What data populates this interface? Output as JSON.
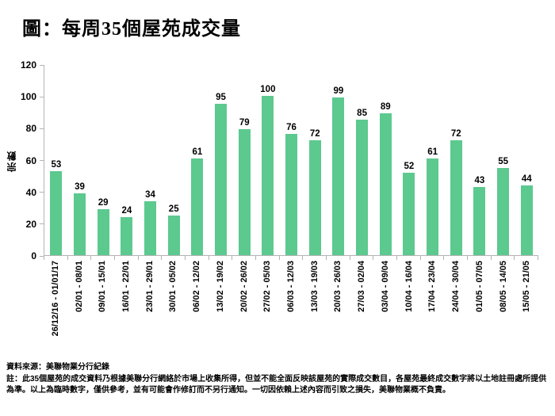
{
  "title": "圖：每周35個屋苑成交量",
  "chart_data": {
    "type": "bar",
    "title": "圖：每周35個屋苑成交量",
    "ylabel": "宗數",
    "xlabel": "",
    "ylim": [
      0,
      120
    ],
    "yticks": [
      0,
      20,
      40,
      60,
      80,
      100,
      120
    ],
    "grid": false,
    "legend_position": "none",
    "bar_color": "#5cc98f",
    "axis_color": "#b3b3b3",
    "categories": [
      "26/12/16 - 01/01/17",
      "02/01 - 08/01",
      "09/01 - 15/01",
      "16/01 - 22/01",
      "23/01 - 29/01",
      "30/01 - 05/02",
      "06/02 - 12/02",
      "13/02 - 19/02",
      "20/02 - 26/02",
      "27/02 - 05/03",
      "06/03 - 12/03",
      "13/03 - 19/03",
      "20/03 - 26/03",
      "27/03 - 02/04",
      "03/04 - 09/04",
      "10/04 - 16/04",
      "17/04 - 23/04",
      "24/04 - 30/04",
      "01/05 - 07/05",
      "08/05 - 14/05",
      "15/05 - 21/05"
    ],
    "values": [
      53,
      39,
      29,
      24,
      34,
      25,
      61,
      95,
      79,
      100,
      76,
      72,
      99,
      85,
      89,
      52,
      61,
      72,
      43,
      55,
      44
    ]
  },
  "footer": {
    "source": "資料來源：美聯物業分行紀錄",
    "note": "註：此35個屋苑的成交資料乃根據美聯分行網絡於市場上收集所得，但並不能全面反映該屋苑的實際成交數目，各屋苑最終成交數字將以土地註冊處所提供為準。以上為臨時數字，僅供參考，並有可能會作修訂而不另行通知。一切因依賴上述內容而引致之損失，美聯物業概不負責。"
  }
}
